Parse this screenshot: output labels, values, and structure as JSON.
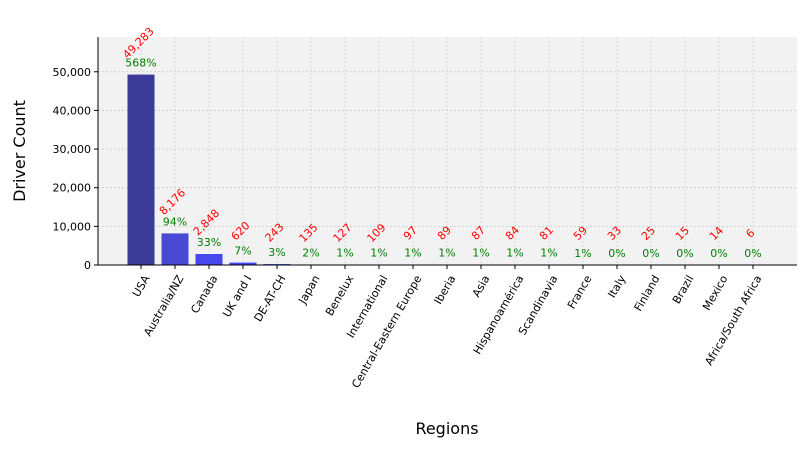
{
  "chart_data": {
    "type": "bar",
    "xlabel": "Regions",
    "ylabel": "Driver Count",
    "ylim": [
      0,
      59000
    ],
    "yticks": [
      0,
      10000,
      20000,
      30000,
      40000,
      50000
    ],
    "ytick_labels": [
      "0",
      "10,000",
      "20,000",
      "30,000",
      "40,000",
      "50,000"
    ],
    "grid": true,
    "background": "#f2f2f2",
    "count_label_color": "#ff0000",
    "pct_label_color": "#008000",
    "categories": [
      "USA",
      "Australia/NZ",
      "Canada",
      "UK and I",
      "DE-AT-CH",
      "Japan",
      "Benelux",
      "International",
      "Central-Eastern Europe",
      "Iberia",
      "Asia",
      "Hispanoamérica",
      "Scandinavia",
      "France",
      "Italy",
      "Finland",
      "Brazil",
      "Mexico",
      "Africa/South Africa"
    ],
    "values": [
      49283,
      8176,
      2848,
      620,
      243,
      135,
      127,
      109,
      97,
      89,
      87,
      84,
      81,
      59,
      33,
      25,
      15,
      14,
      6
    ],
    "count_labels": [
      "49,283",
      "8,176",
      "2,848",
      "620",
      "243",
      "135",
      "127",
      "109",
      "97",
      "89",
      "87",
      "84",
      "81",
      "59",
      "33",
      "25",
      "15",
      "14",
      "6"
    ],
    "pct_labels": [
      "568%",
      "94%",
      "33%",
      "7%",
      "3%",
      "2%",
      "1%",
      "1%",
      "1%",
      "1%",
      "1%",
      "1%",
      "1%",
      "1%",
      "0%",
      "0%",
      "0%",
      "0%",
      "0%"
    ],
    "bar_colors": [
      "#3b3a96",
      "#4a49d6",
      "#4747ee",
      "#4545f6",
      "#3a59e0",
      "#3e63d0",
      "#3b6cbe",
      "#3d74b0",
      "#3a7f9c",
      "#3d8e86",
      "#3f9874",
      "#45a062",
      "#52a650",
      "#6aa744",
      "#8aa43a",
      "#a89e34",
      "#c0922f",
      "#c4812e",
      "#b05f36"
    ]
  }
}
